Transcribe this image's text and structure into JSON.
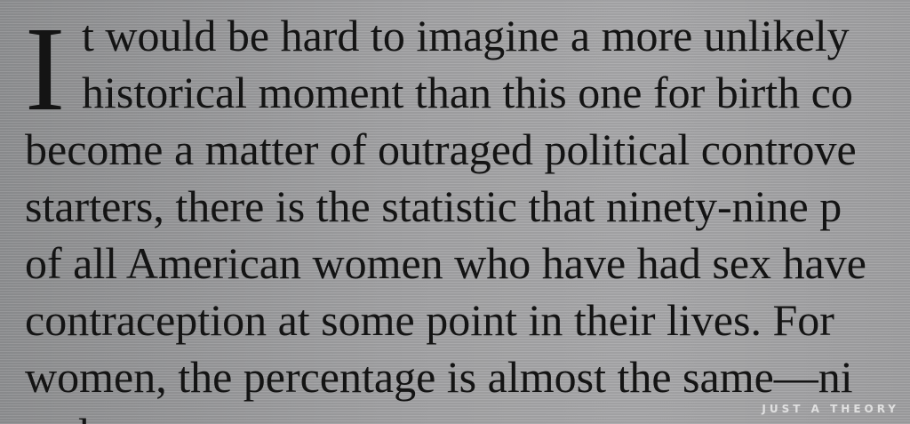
{
  "page_text": {
    "drop_cap": "I",
    "lines": [
      "t would be hard to imagine a more unlikely",
      "historical moment than this one for birth co",
      "become a matter of outraged political controve",
      "starters, there is the statistic that ninety-nine p",
      "of all American women who have had sex have",
      "contraception at some point in their lives. For",
      "women, the percentage is almost the same—ni",
      "and"
    ]
  },
  "watermark": "JUST A THEORY"
}
